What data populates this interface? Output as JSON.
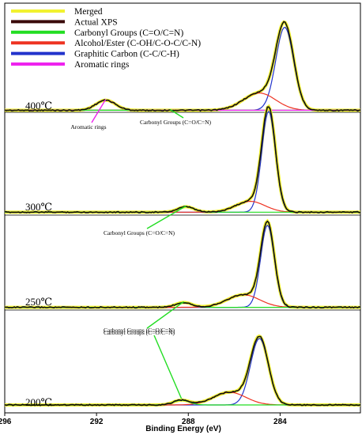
{
  "chart_data": {
    "type": "line",
    "title": "",
    "xlabel": "Binding Energy (eV)",
    "ylabel": "",
    "xlim": [
      296,
      280.5
    ],
    "x_reversed": true,
    "xticks": [
      296,
      292,
      288,
      284
    ],
    "grid": false,
    "legend_position": "top-left",
    "legend": [
      {
        "label": "Merged",
        "color": "#f2f230"
      },
      {
        "label": "Actual XPS",
        "color": "#3a0a0a"
      },
      {
        "label": "Carbonyl Groups (C=O/C=N)",
        "color": "#22dd22"
      },
      {
        "label": "Alcohol/Ester (C-OH/C-O-C/C-N)",
        "color": "#ee3322"
      },
      {
        "label": "Graphitic Carbon (C-C/C-H)",
        "color": "#2233cc"
      },
      {
        "label": "Aromatic rings",
        "color": "#ee22ee"
      }
    ],
    "panels": [
      {
        "temperature": "400℃",
        "baseline": 0.02,
        "components": [
          {
            "name": "Graphitic Carbon (C-C/C-H)",
            "center": 283.8,
            "height": 0.82,
            "width": 0.55
          },
          {
            "name": "Alcohol/Ester (C-OH/C-O-C/C-N)",
            "center": 284.9,
            "height": 0.17,
            "width": 1.0
          },
          {
            "name": "Carbonyl Groups (C=O/C=N)",
            "center": 288.8,
            "height": 0.0,
            "width": 0.8
          },
          {
            "name": "Aromatic rings",
            "center": 291.6,
            "height": 0.1,
            "width": 0.6
          }
        ],
        "annotations": [
          {
            "text": "Aromatic rings",
            "x": 291.6
          },
          {
            "text": "Carbonyl Groups (C=O/C=N)",
            "x": 288.8
          }
        ]
      },
      {
        "temperature": "300℃",
        "baseline": 0.02,
        "components": [
          {
            "name": "Graphitic Carbon (C-C/C-H)",
            "center": 284.5,
            "height": 0.93,
            "width": 0.42
          },
          {
            "name": "Alcohol/Ester (C-OH/C-O-C/C-N)",
            "center": 285.3,
            "height": 0.1,
            "width": 0.9
          },
          {
            "name": "Carbonyl Groups (C=O/C=N)",
            "center": 288.1,
            "height": 0.05,
            "width": 0.5
          }
        ],
        "annotations": [
          {
            "text": "Carbonyl Groups (C=O/C=N)",
            "x": 288.1
          }
        ]
      },
      {
        "temperature": "250℃",
        "baseline": 0.02,
        "components": [
          {
            "name": "Graphitic Carbon (C-C/C-H)",
            "center": 284.55,
            "height": 0.85,
            "width": 0.42
          },
          {
            "name": "Alcohol/Ester (C-OH/C-O-C/C-N)",
            "center": 285.6,
            "height": 0.13,
            "width": 1.0
          },
          {
            "name": "Carbonyl Groups (C=O/C=N)",
            "center": 288.2,
            "height": 0.05,
            "width": 0.5
          }
        ],
        "annotations": [
          {
            "text": "Carbonyl Groups (C=O/C=N)",
            "x": 288.2
          }
        ]
      },
      {
        "temperature": "200℃",
        "baseline": 0.0,
        "components": [
          {
            "name": "Graphitic Carbon (C-C/C-H)",
            "center": 284.9,
            "height": 0.84,
            "width": 0.55
          },
          {
            "name": "Alcohol/Ester (C-OH/C-O-C/C-N)",
            "center": 286.2,
            "height": 0.16,
            "width": 1.0
          },
          {
            "name": "Carbonyl Groups (C=O/C=N)",
            "center": 288.3,
            "height": 0.06,
            "width": 0.5
          }
        ],
        "annotations": [
          {
            "text": "Carbonyl Groups (C=O/C=N)",
            "x": 288.3
          }
        ]
      }
    ]
  }
}
